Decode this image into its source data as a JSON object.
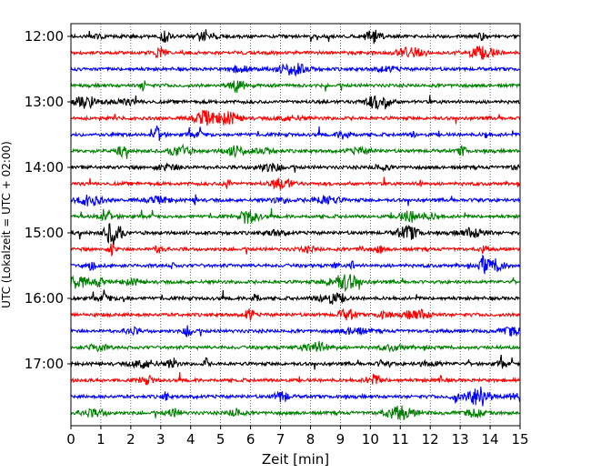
{
  "chart_data": {
    "type": "line",
    "title": "",
    "xlabel": "Zeit  [min]",
    "ylabel": "UTC (Lokalzeit = UTC + 02:00)",
    "xlim": [
      0,
      15
    ],
    "x_ticks": [
      "0",
      "1",
      "2",
      "3",
      "4",
      "5",
      "6",
      "7",
      "8",
      "9",
      "10",
      "11",
      "12",
      "13",
      "14",
      "15"
    ],
    "y_ticks": [
      "12:00",
      "13:00",
      "14:00",
      "15:00",
      "16:00",
      "17:00"
    ],
    "trace_interval_min": 15,
    "start_time": "12:00",
    "trace_count": 24,
    "colors": [
      "#000000",
      "#ff0000",
      "#0000ff",
      "#008000"
    ],
    "grid": "vertical dotted",
    "legend": "none"
  }
}
